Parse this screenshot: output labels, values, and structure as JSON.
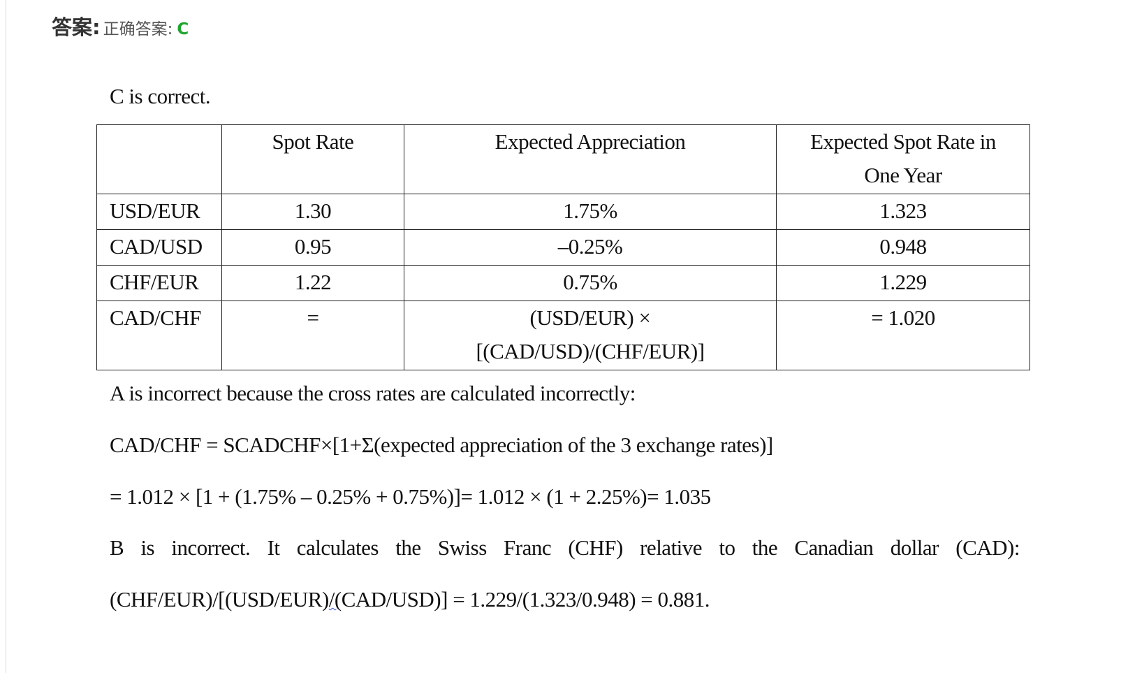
{
  "answer": {
    "label": "答案:",
    "prefix": "正确答案:",
    "letter": "C"
  },
  "explanation": {
    "intro": "C is correct.",
    "table": {
      "headers": [
        "",
        "Spot Rate",
        "Expected Appreciation",
        "Expected Spot Rate in One Year"
      ],
      "rows": [
        [
          "USD/EUR",
          "1.30",
          "1.75%",
          "1.323"
        ],
        [
          "CAD/USD",
          "0.95",
          "–0.25%",
          "0.948"
        ],
        [
          "CHF/EUR",
          "1.22",
          "0.75%",
          "1.229"
        ],
        [
          "CAD/CHF",
          "=",
          "(USD/EUR) × [(CAD/USD)/(CHF/EUR)]",
          "= 1.020"
        ]
      ]
    },
    "a_reason": "A is incorrect because the cross rates are calculated incorrectly:",
    "a_formula": "CAD/CHF = SCADCHF×[1+Σ(expected appreciation of the 3 exchange rates)]",
    "a_calc": "= 1.012 × [1 + (1.75% – 0.25% + 0.75%)]= 1.012 × (1 + 2.25%)= 1.035",
    "b_reason": "B is incorrect. It calculates the Swiss Franc (CHF) relative to the Canadian dollar (CAD):",
    "b_calc_part1": "(CHF/EUR)/[(USD/EUR)",
    "b_calc_squiggle": "/(",
    "b_calc_part2": "CAD/USD)] = 1.229/(1.323/0.948) = 0.881."
  }
}
